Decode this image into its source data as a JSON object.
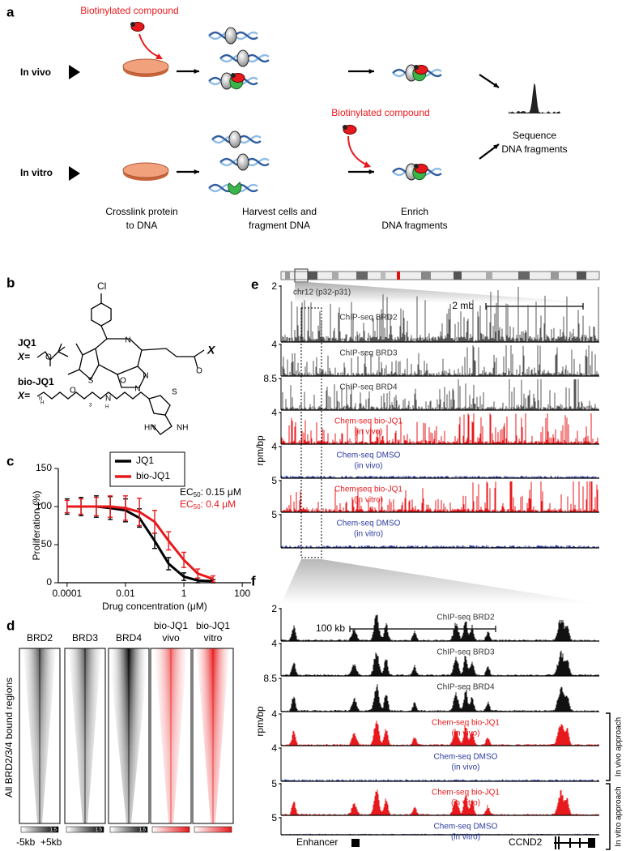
{
  "panels": {
    "a": {
      "label": "a",
      "compound_labels": [
        "Biotinylated compound",
        "Biotinylated compound"
      ],
      "rows": [
        "In vivo",
        "In vitro"
      ],
      "steps": [
        [
          "Crosslink protein",
          "to DNA"
        ],
        [
          "Harvest cells and",
          "fragment DNA"
        ],
        [
          "Enrich",
          "DNA fragments"
        ],
        [
          "Sequence",
          "DNA fragments"
        ]
      ]
    },
    "b": {
      "label": "b",
      "cl": "Cl",
      "x_atom": "X",
      "compounds": [
        {
          "name": "JQ1",
          "x": "X="
        },
        {
          "name": "bio-JQ1",
          "x": "X="
        }
      ],
      "atoms": [
        "N",
        "N",
        "N",
        "S",
        "O",
        "O",
        "H",
        "N",
        "O",
        "N",
        "H",
        "S",
        "HN",
        "NH",
        "O",
        "3"
      ]
    },
    "d": {
      "label": "d",
      "y_label": "All BRD2/3/4 bound regions",
      "columns": [
        {
          "lines": [
            "BRD2"
          ],
          "color": "#000000",
          "colorbar": [
            "0",
            "1.5"
          ]
        },
        {
          "lines": [
            "BRD3"
          ],
          "color": "#000000",
          "colorbar": [
            "0",
            "1.5"
          ]
        },
        {
          "lines": [
            "BRD4"
          ],
          "color": "#000000",
          "colorbar": [
            "0",
            "1.5"
          ]
        },
        {
          "lines": [
            "bio-JQ1",
            "vivo"
          ],
          "color": "#e8191c"
        },
        {
          "lines": [
            "bio-JQ1",
            "vitro"
          ],
          "color": "#e8191c"
        }
      ],
      "x_labels": [
        "-5kb",
        "+5kb"
      ]
    },
    "e": {
      "label": "e",
      "region": "chr12 (p32-p31)",
      "scale": "2 mb",
      "y_label": "rpm/bp",
      "tracks": [
        {
          "scale": "2",
          "lines": [
            "ChIP-seq BRD2"
          ],
          "color": "#555555"
        },
        {
          "scale": "4",
          "lines": [
            "ChIP-seq BRD3"
          ],
          "color": "#555555"
        },
        {
          "scale": "8.5",
          "lines": [
            "ChIP-seq BRD4"
          ],
          "color": "#555555"
        },
        {
          "scale": "4",
          "lines": [
            "Chem-seq bio-JQ1",
            "(in vivo)"
          ],
          "color": "#e8191c"
        },
        {
          "scale": "4",
          "lines": [
            "Chem-seq DMSO",
            "(in vivo)"
          ],
          "color": "#2b3aa0"
        },
        {
          "scale": "5",
          "lines": [
            "Chem-seq bio-JQ1",
            "(in vitro)"
          ],
          "color": "#e8191c"
        },
        {
          "scale": "5",
          "lines": [
            "Chem-seq DMSO",
            "(in vitro)"
          ],
          "color": "#2b3aa0"
        }
      ]
    },
    "f": {
      "label": "f",
      "scale": "100 kb",
      "y_label": "rpm/bp",
      "tracks": [
        {
          "scale": "2",
          "lines": [
            "ChIP-seq BRD2"
          ],
          "color": "#111111"
        },
        {
          "scale": "4",
          "lines": [
            "ChIP-seq BRD3"
          ],
          "color": "#111111"
        },
        {
          "scale": "8.5",
          "lines": [
            "ChIP-seq BRD4"
          ],
          "color": "#111111"
        },
        {
          "scale": "4",
          "lines": [
            "Chem-seq bio-JQ1",
            "(in vivo)"
          ],
          "color": "#e8191c"
        },
        {
          "scale": "4",
          "lines": [
            "Chem-seq DMSO",
            "(in vivo)"
          ],
          "color": "#2b3aa0"
        },
        {
          "scale": "5",
          "lines": [
            "Chem-seq bio-JQ1",
            "(in vitro)"
          ],
          "color": "#e8191c"
        },
        {
          "scale": "5",
          "lines": [
            "Chem-seq DMSO",
            "(in vitro)"
          ],
          "color": "#2b3aa0"
        }
      ],
      "enhancer": "Enhancer",
      "gene": "CCND2",
      "approaches": [
        "In vivo approach",
        "In vitro approach"
      ]
    }
  },
  "chart_data": {
    "type": "line",
    "label": "c",
    "xlabel": "Drug concentration (μM)",
    "ylabel": "Proliferation (%)",
    "xlog": true,
    "xlim": [
      5e-05,
      200
    ],
    "xticks": [
      0.0001,
      0.01,
      1,
      100
    ],
    "ylim": [
      0,
      150
    ],
    "yticks": [
      0,
      50,
      100,
      150
    ],
    "x": [
      0.0001,
      0.0003,
      0.001,
      0.003,
      0.01,
      0.03,
      0.1,
      0.3,
      1,
      3,
      10
    ],
    "series": [
      {
        "name": "JQ1",
        "color": "#000000",
        "values": [
          100,
          100,
          100,
          98,
          95,
          85,
          55,
          25,
          8,
          3,
          2
        ],
        "errors": [
          10,
          12,
          14,
          15,
          15,
          12,
          10,
          8,
          5,
          3,
          2
        ]
      },
      {
        "name": "bio-JQ1",
        "color": "#e8191c",
        "values": [
          100,
          100,
          100,
          100,
          98,
          93,
          80,
          55,
          30,
          12,
          5
        ],
        "errors": [
          8,
          10,
          12,
          14,
          16,
          18,
          15,
          12,
          10,
          6,
          4
        ]
      }
    ],
    "annotations": [
      {
        "prefix": "EC",
        "sub": "50",
        "text": ": 0.15 μM",
        "color": "#000000"
      },
      {
        "prefix": "EC",
        "sub": "50",
        "text": ": 0.4 μM",
        "color": "#e8191c"
      }
    ]
  }
}
